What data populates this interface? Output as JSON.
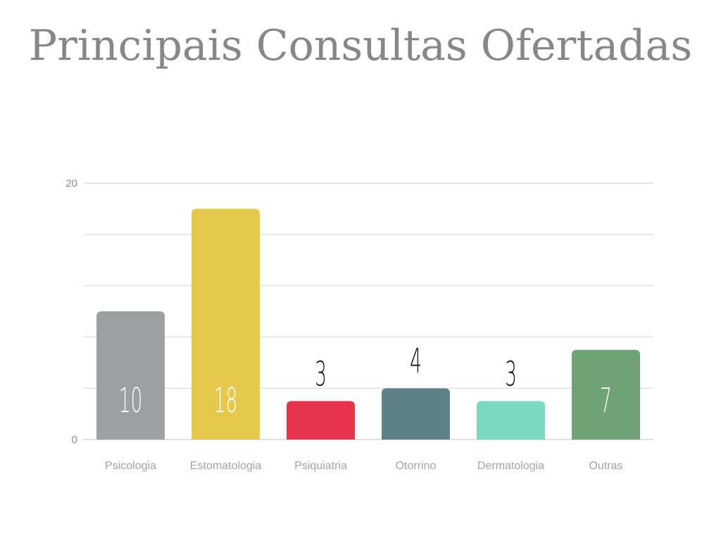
{
  "chart_data": {
    "type": "bar",
    "title": "Principais Consultas Ofertadas",
    "categories": [
      "Psicologia",
      "Estomatologia",
      "Psiquiatria",
      "Otorrino",
      "Dermatologia",
      "Outras"
    ],
    "values": [
      10,
      18,
      3,
      4,
      3,
      7
    ],
    "colors": [
      "#9ca0a3",
      "#e5c84c",
      "#e8334f",
      "#5f8189",
      "#7bd9c2",
      "#6fa275"
    ],
    "ylim": [
      0,
      20
    ],
    "yticks": [
      "0",
      "20"
    ],
    "grid": true,
    "legend": "none",
    "data_labels": [
      "10",
      "18",
      "3",
      "4",
      "3",
      "7"
    ],
    "data_label_inside": [
      true,
      true,
      false,
      false,
      false,
      true
    ]
  }
}
